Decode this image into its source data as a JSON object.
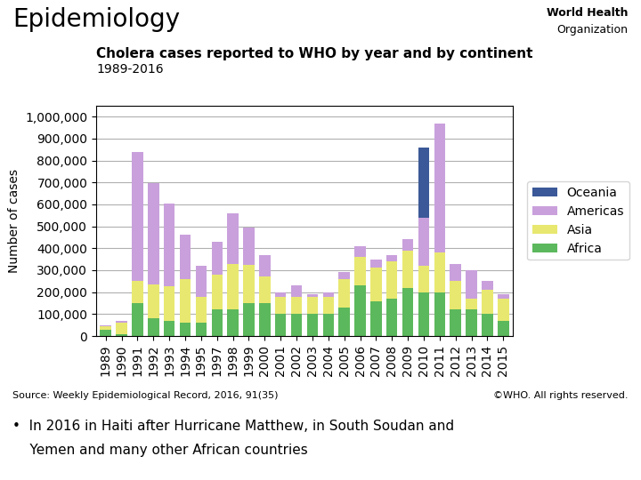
{
  "chart_data": {
    "type": "bar",
    "stacked": true,
    "title": "Cholera cases reported to WHO by year and by continent",
    "subtitle": "1989-2016",
    "y_label": "Number of cases",
    "annotations": [
      "Epidemiology",
      "World Health",
      "Organization",
      "Source: Weekly Epidemiological Record, 2016, 91(35)",
      "©WHO. All rights reserved.",
      "•  In 2016 in Haiti after Hurricane Matthew, in South Soudan and",
      "    Yemen and many other African countries"
    ],
    "categories": [
      "1989",
      "1990",
      "1991",
      "1992",
      "1993",
      "1994",
      "1995",
      "1997",
      "1998",
      "1999",
      "2000",
      "2001",
      "2002",
      "2003",
      "2004",
      "2005",
      "2006",
      "2007",
      "2008",
      "2009",
      "2010",
      "2011",
      "2012",
      "2013",
      "2014",
      "2015"
    ],
    "series": [
      {
        "name": "Africa",
        "color": "#5cb85c",
        "values": [
          30000,
          10000,
          150000,
          80000,
          70000,
          60000,
          60000,
          120000,
          120000,
          150000,
          150000,
          100000,
          100000,
          100000,
          100000,
          130000,
          230000,
          160000,
          170000,
          220000,
          200000,
          200000,
          120000,
          120000,
          100000,
          70000
        ]
      },
      {
        "name": "Asia",
        "color": "#e8e870",
        "values": [
          15000,
          50000,
          100000,
          155000,
          155000,
          200000,
          120000,
          160000,
          210000,
          175000,
          120000,
          80000,
          80000,
          80000,
          80000,
          130000,
          130000,
          150000,
          170000,
          170000,
          120000,
          180000,
          130000,
          50000,
          110000,
          100000
        ]
      },
      {
        "name": "Americas",
        "color": "#c9a0dc",
        "values": [
          5000,
          10000,
          590000,
          460000,
          380000,
          200000,
          140000,
          150000,
          230000,
          170000,
          100000,
          20000,
          50000,
          10000,
          20000,
          30000,
          50000,
          40000,
          30000,
          50000,
          220000,
          590000,
          80000,
          130000,
          40000,
          20000
        ]
      },
      {
        "name": "Oceania",
        "color": "#3b5998",
        "values": [
          0,
          0,
          0,
          0,
          0,
          0,
          0,
          0,
          0,
          0,
          0,
          0,
          0,
          0,
          0,
          0,
          0,
          0,
          0,
          0,
          320000,
          0,
          0,
          0,
          0,
          0
        ]
      }
    ],
    "ylim": [
      0,
      1050000
    ],
    "yticks": [
      0,
      {
        "value": 100000,
        "label": "100,000"
      },
      {
        "value": 200000,
        "label": "200,000"
      },
      {
        "value": 300000,
        "label": "300,000"
      },
      {
        "value": 400000,
        "label": "400,000"
      },
      {
        "value": 500000,
        "label": "500,000"
      },
      {
        "value": 600000,
        "label": "600,000"
      },
      {
        "value": 700000,
        "label": "700,000"
      },
      {
        "value": 800000,
        "label": "800,000"
      },
      {
        "value": 900000,
        "label": "900,000"
      },
      {
        "value": 1000000,
        "label": "1,000,000"
      }
    ],
    "grid": true,
    "legend": "right"
  }
}
